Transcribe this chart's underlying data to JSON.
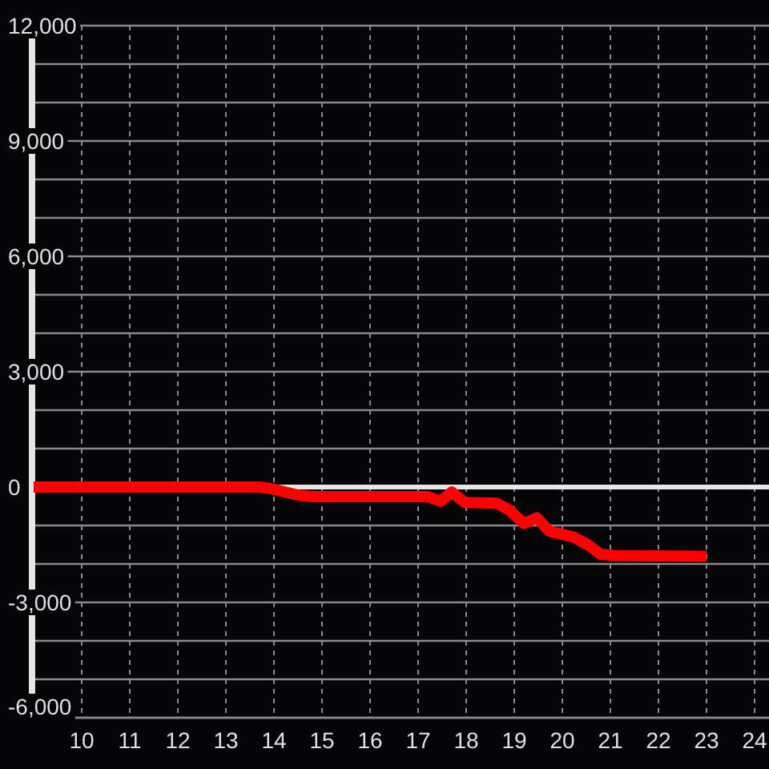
{
  "chart_data": {
    "type": "line",
    "x": [
      9,
      13.7,
      13.97,
      14.2,
      14.53,
      14.8,
      17.2,
      17.47,
      17.7,
      17.97,
      18.63,
      18.9,
      19.2,
      19.47,
      19.73,
      20.23,
      20.53,
      20.8,
      21.07,
      23.0
    ],
    "series": [
      {
        "color": "#ff0000",
        "values": [
          0,
          0,
          -50,
          -120,
          -220,
          -250,
          -250,
          -370,
          -130,
          -400,
          -420,
          -600,
          -950,
          -800,
          -1150,
          -1300,
          -1500,
          -1750,
          -1780,
          -1800
        ]
      }
    ],
    "xlim": [
      9,
      24.3
    ],
    "ylim": [
      -6000,
      12000
    ],
    "xticks": [
      10,
      11,
      12,
      13,
      14,
      15,
      16,
      17,
      18,
      19,
      20,
      21,
      22,
      23,
      24
    ],
    "yticks": [
      {
        "value": -6000,
        "label": "-6,000"
      },
      {
        "value": -5000,
        "label": null
      },
      {
        "value": -4000,
        "label": null
      },
      {
        "value": -3000,
        "label": "-3,000"
      },
      {
        "value": -2000,
        "label": null
      },
      {
        "value": -1000,
        "label": null
      },
      0,
      {
        "value": 1000,
        "label": null
      },
      {
        "value": 2000,
        "label": null
      },
      {
        "value": 3000,
        "label": "3,000"
      },
      {
        "value": 4000,
        "label": null
      },
      {
        "value": 5000,
        "label": null
      },
      {
        "value": 6000,
        "label": "6,000"
      },
      {
        "value": 7000,
        "label": null
      },
      {
        "value": 8000,
        "label": null
      },
      {
        "value": 9000,
        "label": "9,000"
      },
      {
        "value": 10000,
        "label": null
      },
      {
        "value": 11000,
        "label": null
      },
      {
        "value": 12000,
        "label": "12,000"
      }
    ],
    "grid": true,
    "ref_lines": [
      {
        "axis": "y",
        "value": 0,
        "color": "#e6e6e6"
      }
    ]
  }
}
